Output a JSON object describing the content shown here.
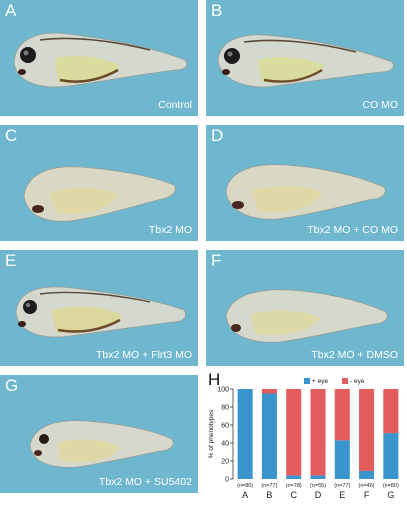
{
  "panels": [
    {
      "letter": "A",
      "label": "Control"
    },
    {
      "letter": "B",
      "label": "CO MO"
    },
    {
      "letter": "C",
      "label": "Tbx2 MO"
    },
    {
      "letter": "D",
      "label": "Tbx2 MO + CO MO"
    },
    {
      "letter": "E",
      "label": "Tbx2 MO + Flrt3 MO"
    },
    {
      "letter": "F",
      "label": "Tbx2 MO + DMSO"
    },
    {
      "letter": "G",
      "label": "Tbx2 MO + SU5402"
    }
  ],
  "chart_panel_letter": "H",
  "colors": {
    "panel_bg": "#6fb7cf",
    "plus_eye": "#3a95cc",
    "minus_eye": "#e45d5d"
  },
  "chart_data": {
    "type": "bar",
    "stacked": true,
    "categories": [
      "A",
      "B",
      "C",
      "D",
      "E",
      "F",
      "G"
    ],
    "n_labels": [
      "(n=80)",
      "(n=77)",
      "(n=78)",
      "(n=55)",
      "(n=77)",
      "(n=46)",
      "(n=80)"
    ],
    "series": [
      {
        "name": "+ eye",
        "color": "#3a95cc",
        "values": [
          100,
          95,
          4,
          4,
          43,
          9,
          51
        ]
      },
      {
        "name": "- eye",
        "color": "#e45d5d",
        "values": [
          0,
          5,
          96,
          96,
          57,
          91,
          49
        ]
      }
    ],
    "ylabel": "% of phenotypes",
    "ylim": [
      0,
      100
    ],
    "yticks": [
      "0",
      "20",
      "40",
      "60",
      "80",
      "100"
    ],
    "legend_position": "top"
  }
}
